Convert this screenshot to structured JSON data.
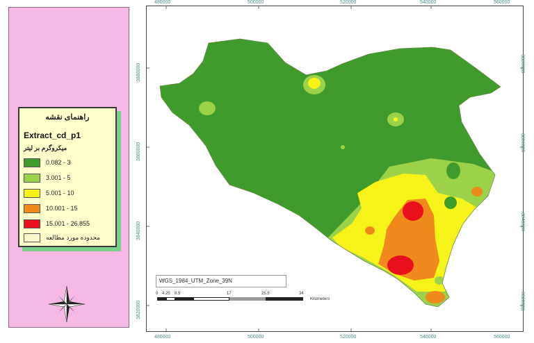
{
  "legend": {
    "title": "راهنمای نقشه",
    "layer_name": "Extract_cd_p1",
    "unit": "میکروگرم بر لیتر",
    "items": [
      {
        "label": "0.082 - 3",
        "color": "#3f9b2b"
      },
      {
        "label": "3.001 - 5",
        "color": "#9cd24a"
      },
      {
        "label": "5.001 - 10",
        "color": "#f5f31a"
      },
      {
        "label": "10.001 - 15",
        "color": "#f08a1c"
      },
      {
        "label": "15.001 - 26.855",
        "color": "#e8101a"
      },
      {
        "label": "محدوده مورد مطالعه",
        "color": "#fdf6c8"
      }
    ]
  },
  "map": {
    "projection_label": "WGS_1984_UTM_Zone_39N",
    "x_ticks": [
      "480000",
      "500000",
      "520000",
      "540000",
      "560000"
    ],
    "y_ticks": [
      "3880000",
      "3860000",
      "3840000",
      "3820000",
      "3800000"
    ],
    "scalebar": {
      "numbers": [
        "0",
        "4.25",
        "8.5",
        "17",
        "25.5",
        "34"
      ],
      "unit": "Kilometers"
    },
    "north_arrow": "north-arrow-compass-icon"
  }
}
